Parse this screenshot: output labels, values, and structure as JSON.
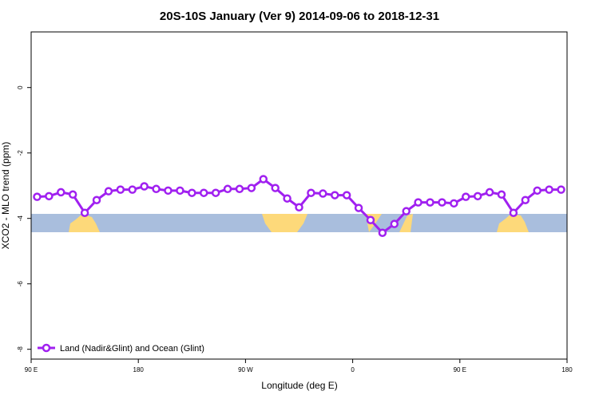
{
  "chart_data": {
    "type": "line",
    "title": "20S-10S January (Ver 9)   2014-09-06 to 2018-12-31",
    "x_label": "Longitude (deg E)",
    "y_label": "XCO2 - MLO trend (ppm)",
    "xlim": [
      90,
      540
    ],
    "ylim": [
      -8.3,
      1.7
    ],
    "xticks": [
      {
        "value": 90,
        "label": "90 E"
      },
      {
        "value": 180,
        "label": "180"
      },
      {
        "value": 270,
        "label": "90 W"
      },
      {
        "value": 360,
        "label": "0"
      },
      {
        "value": 450,
        "label": "90 E"
      },
      {
        "value": 540,
        "label": "180"
      }
    ],
    "yticks": [
      0,
      -2,
      -4,
      -6,
      -8
    ],
    "legend": "bottom-left",
    "series": [
      {
        "name": "Land (Nadir&Glint) and Ocean (Glint)",
        "color": "#a020f0",
        "x": [
          95,
          105,
          115,
          125,
          135,
          145,
          155,
          165,
          175,
          185,
          195,
          205,
          215,
          225,
          235,
          245,
          255,
          265,
          275,
          285,
          295,
          305,
          315,
          325,
          335,
          345,
          355,
          365,
          375,
          385,
          395,
          405,
          415,
          425,
          435,
          445,
          455,
          465,
          475,
          485,
          495,
          505,
          515,
          525,
          535
        ],
        "values": [
          -3.34,
          -3.32,
          -3.2,
          -3.27,
          -3.83,
          -3.44,
          -3.17,
          -3.12,
          -3.12,
          -3.02,
          -3.1,
          -3.15,
          -3.15,
          -3.22,
          -3.22,
          -3.22,
          -3.1,
          -3.1,
          -3.07,
          -2.8,
          -3.07,
          -3.39,
          -3.66,
          -3.22,
          -3.24,
          -3.29,
          -3.29,
          -3.68,
          -4.05,
          -4.44,
          -4.17,
          -3.78,
          -3.51,
          -3.51,
          -3.51,
          -3.54,
          -3.34,
          -3.32,
          -3.2,
          -3.27,
          -3.83,
          -3.44,
          -3.15,
          -3.12,
          -3.12
        ]
      }
    ]
  }
}
